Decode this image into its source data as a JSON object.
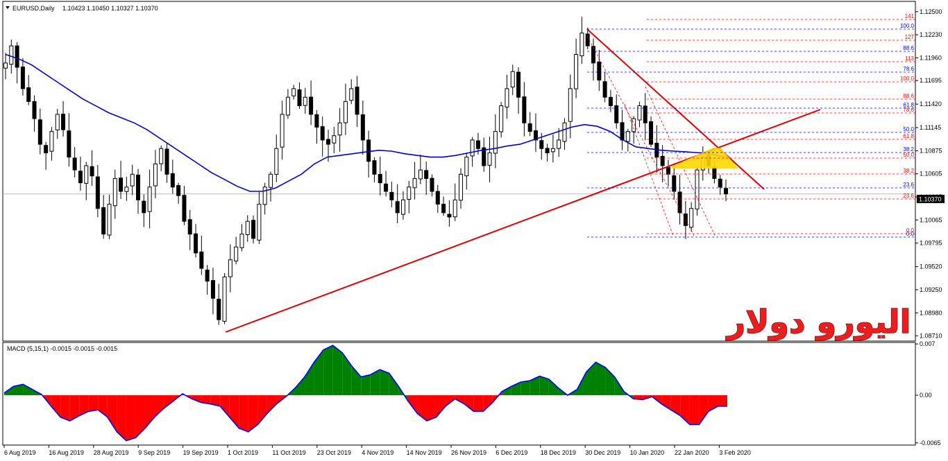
{
  "window": {
    "title": "EURUSD,Daily",
    "ohlc": "1.10423 1.10450 1.10327 1.10370",
    "current_price": "1.10370"
  },
  "watermark": "اليورو دولار",
  "colors": {
    "candle_up": "#ffffff",
    "candle_down": "#000000",
    "ma_line": "#0000cc",
    "trendline": "#e00000",
    "macd_positive": "#008000",
    "macd_negative": "#ff0000",
    "macd_signal": "#0000ff",
    "fib_red": "#ff0000",
    "fib_blue": "#0000ff",
    "zone_fill": "#ffd700"
  },
  "chart_data": [
    {
      "type": "candlestick",
      "title": "EURUSD,Daily",
      "price_axis_ticks": [
        "1.12500",
        "1.12230",
        "1.11960",
        "1.11695",
        "1.11420",
        "1.11145",
        "1.10875",
        "1.10605",
        "1.10335",
        "1.10065",
        "1.09795",
        "1.09520",
        "1.09250",
        "1.08980",
        "1.08710"
      ],
      "ylim": [
        1.0865,
        1.1262
      ],
      "x_axis_labels": [
        "6 Aug 2019",
        "16 Aug 2019",
        "28 Aug 2019",
        "9 Sep 2019",
        "19 Sep 2019",
        "1 Oct 2019",
        "11 Oct 2019",
        "23 Oct 2019",
        "4 Nov 2019",
        "14 Nov 2019",
        "26 Nov 2019",
        "6 Dec 2019",
        "18 Dec 2019",
        "30 Dec 2019",
        "10 Jan 2020",
        "22 Jan 2020",
        "3 Feb 2020"
      ],
      "close_path": [
        1.119,
        1.121,
        1.1185,
        1.116,
        1.1145,
        1.1125,
        1.1095,
        1.1085,
        1.111,
        1.113,
        1.1112,
        1.108,
        1.1065,
        1.105,
        1.107,
        1.1058,
        1.102,
        1.099,
        1.1025,
        1.1055,
        1.104,
        1.1045,
        1.106,
        1.103,
        1.1015,
        1.1045,
        1.1072,
        1.109,
        1.106,
        1.1045,
        1.1035,
        1.1005,
        1.099,
        1.0968,
        1.095,
        1.0935,
        1.0915,
        1.089,
        1.094,
        1.096,
        1.0975,
        1.099,
        1.1005,
        1.0985,
        1.1025,
        1.1045,
        1.106,
        1.109,
        1.113,
        1.115,
        1.116,
        1.114,
        1.115,
        1.113,
        1.1115,
        1.11,
        1.1095,
        1.1105,
        1.112,
        1.1145,
        1.116,
        1.113,
        1.11,
        1.1075,
        1.106,
        1.105,
        1.104,
        1.103,
        1.1015,
        1.103,
        1.1045,
        1.1055,
        1.1065,
        1.1055,
        1.104,
        1.1025,
        1.1015,
        1.101,
        1.103,
        1.106,
        1.108,
        1.11,
        1.109,
        1.107,
        1.1085,
        1.111,
        1.114,
        1.116,
        1.118,
        1.115,
        1.112,
        1.111,
        1.11,
        1.109,
        1.1085,
        1.109,
        1.11,
        1.112,
        1.116,
        1.12,
        1.1225,
        1.121,
        1.119,
        1.117,
        1.115,
        1.114,
        1.112,
        1.11,
        1.111,
        1.1125,
        1.114,
        1.112,
        1.1095,
        1.108,
        1.107,
        1.106,
        1.104,
        1.1015,
        1.1,
        1.102,
        1.1065,
        1.108,
        1.107,
        1.1055,
        1.1045,
        1.1037
      ],
      "moving_average_path": [
        1.12,
        1.1195,
        1.1188,
        1.1178,
        1.1168,
        1.1158,
        1.1148,
        1.114,
        1.1132,
        1.1126,
        1.112,
        1.1112,
        1.1102,
        1.1092,
        1.1082,
        1.1072,
        1.1062,
        1.1054,
        1.1046,
        1.104,
        1.104,
        1.1044,
        1.1052,
        1.106,
        1.1072,
        1.108,
        1.1082,
        1.1084,
        1.1086,
        1.1088,
        1.1087,
        1.1084,
        1.1082,
        1.108,
        1.108,
        1.1082,
        1.1085,
        1.1088,
        1.109,
        1.1093,
        1.1095,
        1.11,
        1.1105,
        1.111,
        1.1115,
        1.1118,
        1.1116,
        1.111,
        1.11,
        1.1092,
        1.109,
        1.1088,
        1.1087,
        1.1086,
        1.1085,
        1.1083,
        1.108
      ],
      "fibonacci_right": {
        "red_levels": [
          "141",
          "127",
          "113",
          "100.0",
          "88.6",
          "78.6",
          "61.8",
          "50.0",
          "38.2",
          "23.6",
          "0.0"
        ],
        "blue_levels": [
          "100.0",
          "88.6",
          "78.6",
          "61.8",
          "50.0",
          "38.2",
          "23.6",
          "0.0"
        ]
      }
    },
    {
      "type": "histogram",
      "title": "MACD (5,15,1) -0.0015 -0.0015 -0.0015",
      "y_axis_ticks": [
        "0.007",
        "0.00",
        "-0.0065"
      ],
      "ylim": [
        -0.0068,
        0.0072
      ],
      "values": [
        0.0003,
        0.0012,
        0.0015,
        0.0008,
        0.0001,
        -0.0015,
        -0.003,
        -0.0035,
        -0.0028,
        -0.0022,
        -0.002,
        -0.003,
        -0.005,
        -0.0062,
        -0.0058,
        -0.0045,
        -0.003,
        -0.0018,
        -0.0008,
        0.0002,
        -0.0005,
        -0.001,
        -0.0012,
        -0.0015,
        -0.003,
        -0.0045,
        -0.005,
        -0.004,
        -0.0025,
        -0.0012,
        -0.0002,
        0.001,
        0.0025,
        0.0045,
        0.0062,
        0.0068,
        0.0058,
        0.004,
        0.0025,
        0.0028,
        0.0035,
        0.003,
        0.0012,
        -0.0008,
        -0.0025,
        -0.0035,
        -0.003,
        -0.0015,
        -0.0005,
        -0.0012,
        -0.0022,
        -0.0022,
        -0.001,
        0.0005,
        0.0012,
        0.0018,
        0.002,
        0.0026,
        0.0022,
        0.001,
        0.0,
        0.0008,
        0.0032,
        0.0045,
        0.0038,
        0.0025,
        0.0005,
        -0.0005,
        -0.0006,
        -0.0002,
        -0.0012,
        -0.002,
        -0.0028,
        -0.004,
        -0.004,
        -0.0022,
        -0.0015,
        -0.0015
      ]
    }
  ]
}
